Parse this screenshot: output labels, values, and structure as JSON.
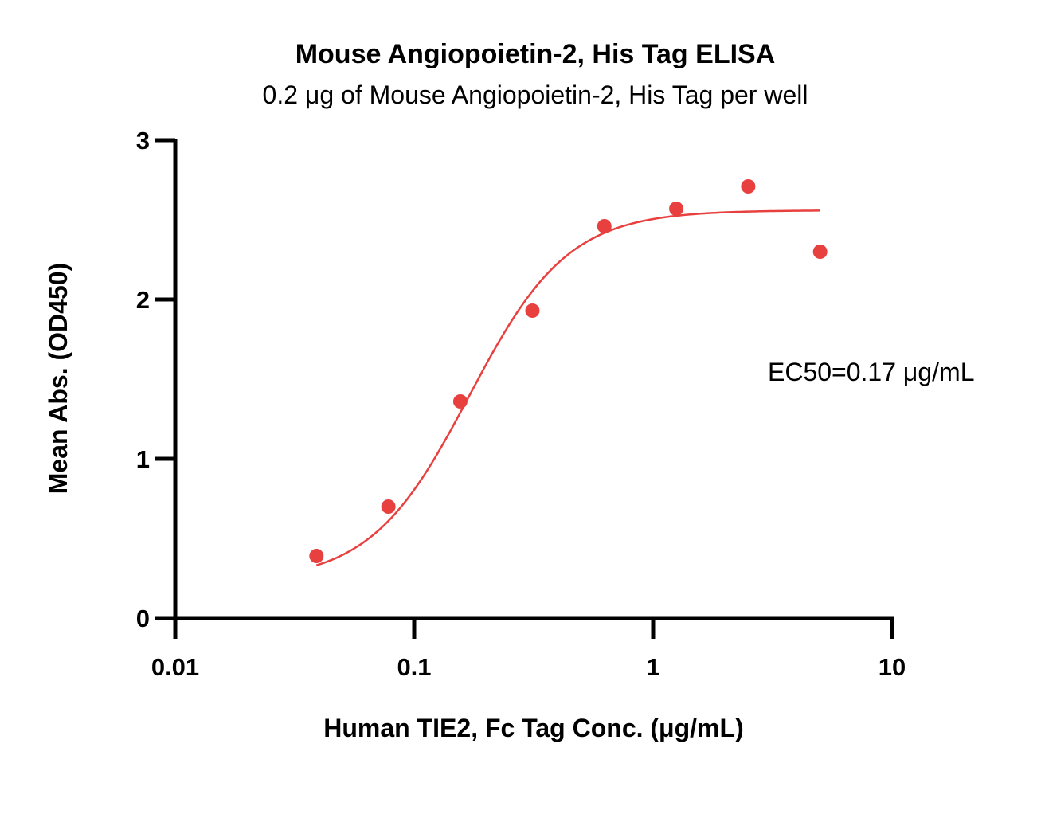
{
  "chart_data": {
    "type": "scatter",
    "title": "Mouse Angiopoietin-2, His Tag ELISA",
    "subtitle": "0.2 μg of Mouse Angiopoietin-2, His Tag per well",
    "xlabel": "Human TIE2, Fc Tag Conc. (μg/mL)",
    "ylabel": "Mean Abs. (OD450)",
    "xscale": "log",
    "xlim": [
      0.01,
      10
    ],
    "ylim": [
      0,
      3
    ],
    "x_ticks": [
      {
        "value": 0.01,
        "label": "0.01"
      },
      {
        "value": 0.1,
        "label": "0.1"
      },
      {
        "value": 1,
        "label": "1"
      },
      {
        "value": 10,
        "label": "10"
      }
    ],
    "y_ticks": [
      {
        "value": 0,
        "label": "0"
      },
      {
        "value": 1,
        "label": "1"
      },
      {
        "value": 2,
        "label": "2"
      },
      {
        "value": 3,
        "label": "3"
      }
    ],
    "series": [
      {
        "color": "#e8403f",
        "points": [
          {
            "x": 0.039,
            "y": 0.39
          },
          {
            "x": 0.078,
            "y": 0.7
          },
          {
            "x": 0.156,
            "y": 1.36
          },
          {
            "x": 0.3125,
            "y": 1.93
          },
          {
            "x": 0.625,
            "y": 2.46
          },
          {
            "x": 1.25,
            "y": 2.57
          },
          {
            "x": 2.5,
            "y": 2.71
          },
          {
            "x": 5,
            "y": 2.3
          }
        ],
        "fit": {
          "model": "4PL",
          "bottom": 0.23,
          "top": 2.56,
          "ec50": 0.17,
          "hill": 2.1,
          "x_range": [
            0.039,
            5
          ]
        }
      }
    ],
    "annotation": "EC50=0.17 μg/mL",
    "grid": false,
    "legend": "none"
  }
}
